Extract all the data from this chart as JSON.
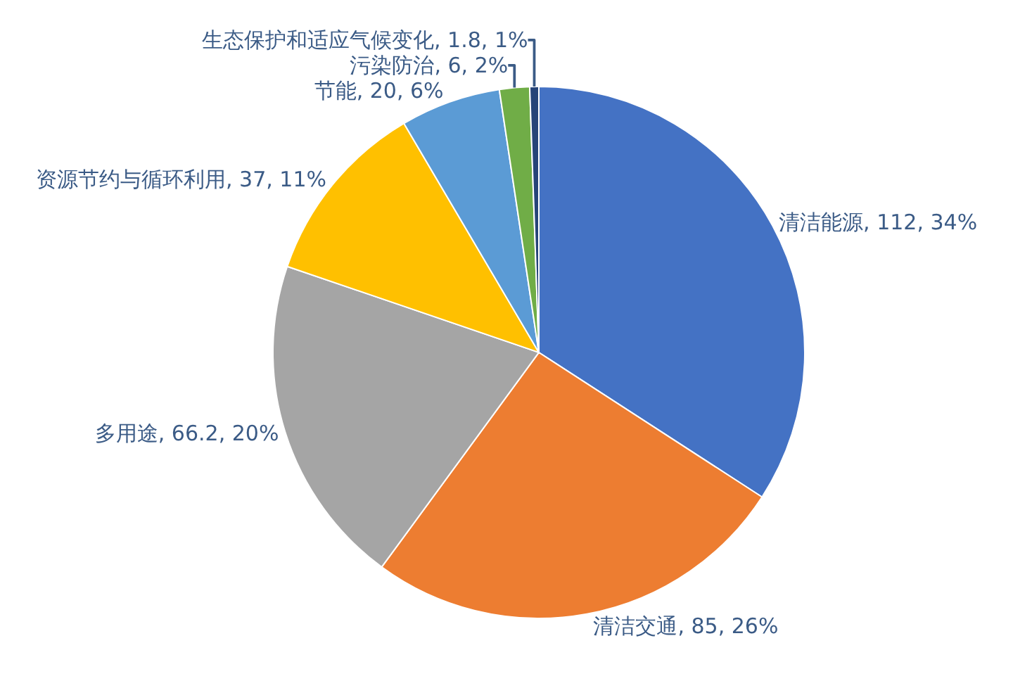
{
  "chart_data": {
    "type": "pie",
    "categories": [
      "清洁能源",
      "清洁交通",
      "多用途",
      "资源节约与循环利用",
      "节能",
      "污染防治",
      "生态保护和适应气候变化"
    ],
    "values": [
      112,
      85,
      66.2,
      37,
      20,
      6,
      1.8
    ],
    "value_labels": [
      "112, 34%",
      "85, 26%",
      "66.2, 20%",
      "37, 11%",
      "20, 6%",
      "6, 2%",
      "1.8, 1%"
    ],
    "colors": [
      "#4472c4",
      "#ed7d31",
      "#a5a5a5",
      "#ffc000",
      "#5b9bd5",
      "#70ad47",
      "#264478"
    ],
    "legend": false
  }
}
